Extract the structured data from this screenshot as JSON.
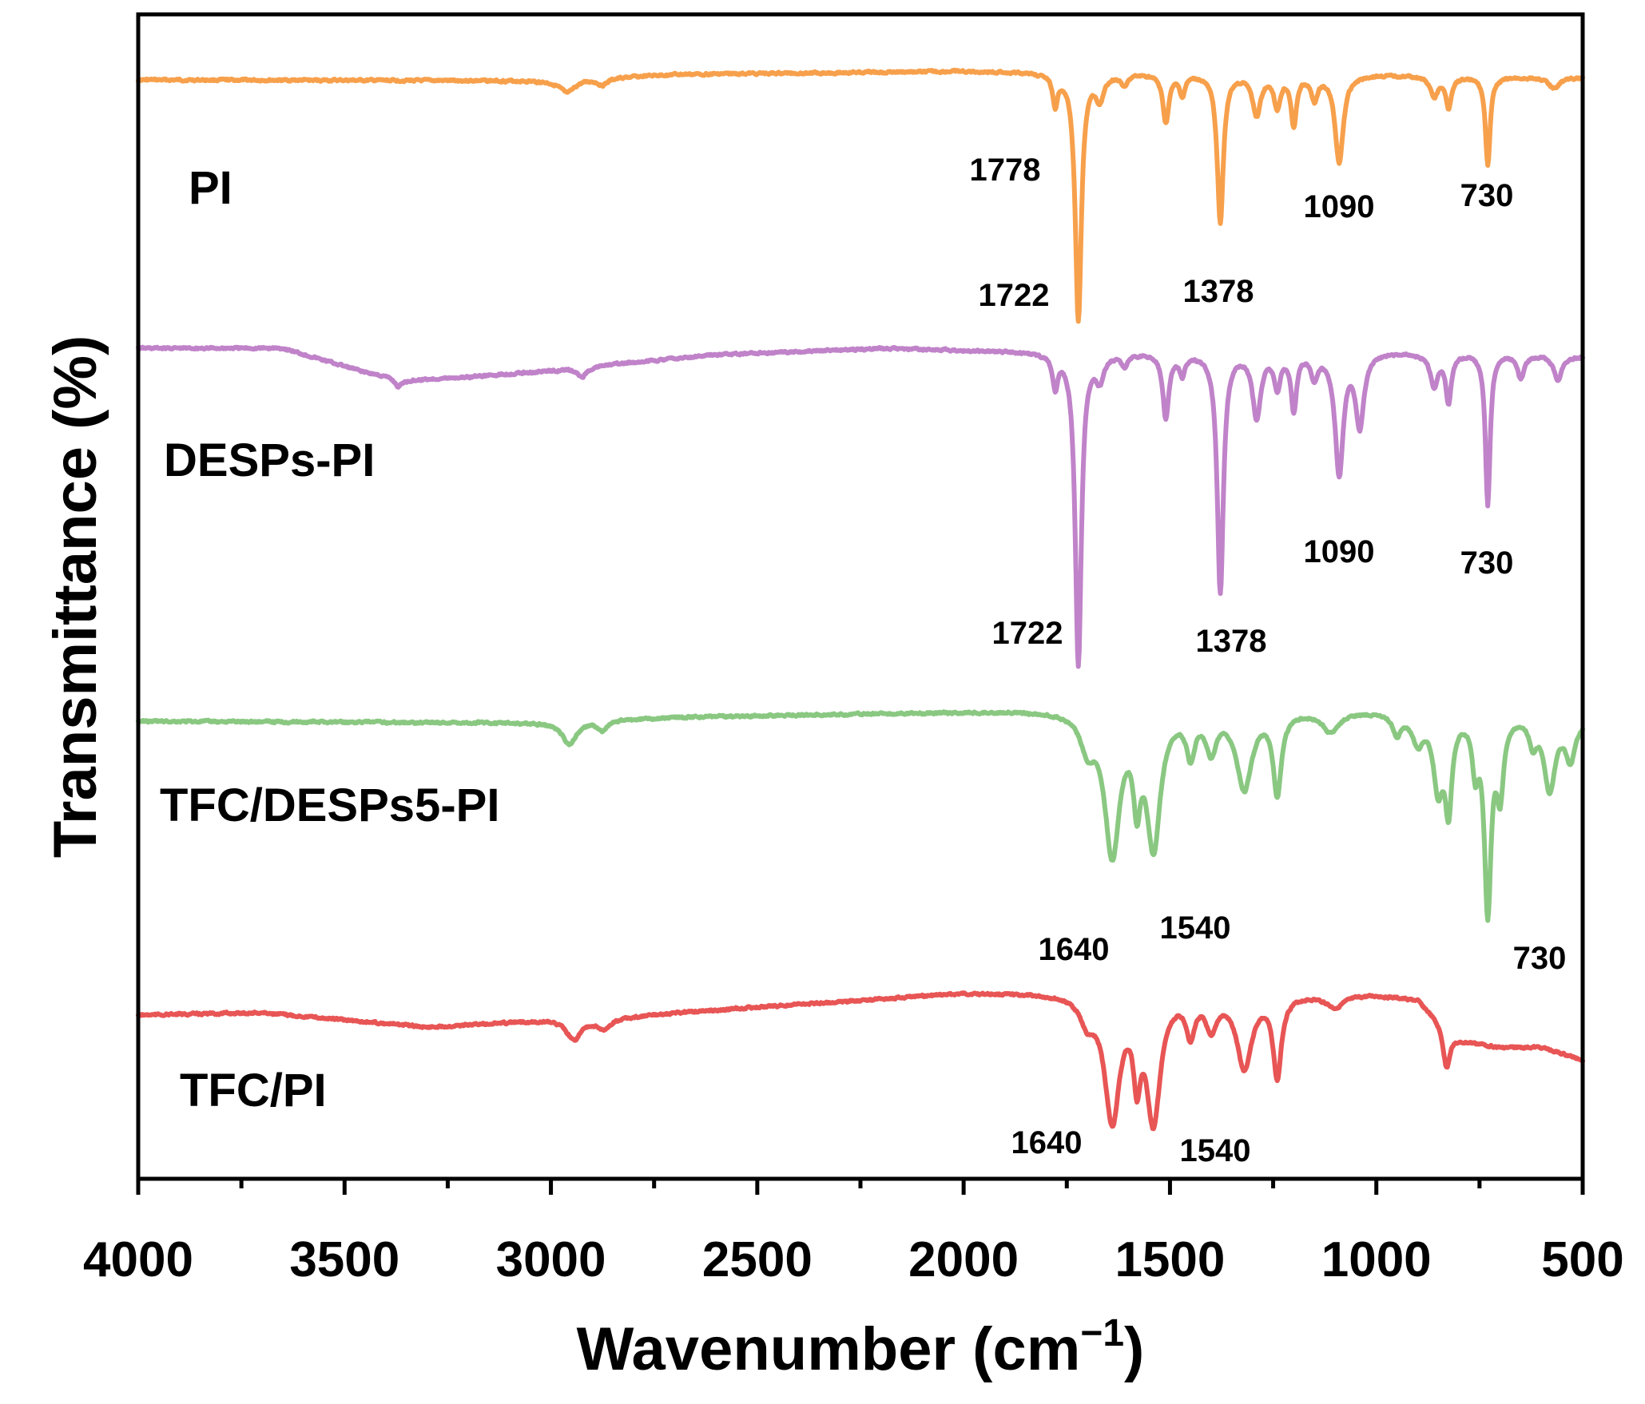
{
  "chart_data": {
    "type": "line",
    "title": "",
    "xlabel": "Wavenumber (cm",
    "xlabel_superscript": "−1",
    "xlabel_close": ")",
    "ylabel": "Transmittance (%)",
    "xlim": [
      4000,
      500
    ],
    "x_ticks": [
      4000,
      3500,
      3000,
      2500,
      2000,
      1500,
      1000,
      500
    ],
    "x_tick_labels": [
      "4000",
      "3500",
      "3000",
      "2500",
      "2000",
      "1500",
      "1000",
      "500"
    ],
    "y_ticks_shown": false,
    "series": [
      {
        "name": "PI",
        "color": "#f7a04c",
        "baseline": 0.0,
        "noise": 2.2,
        "drift": [
          [
            4000,
            0
          ],
          [
            3000,
            -1
          ],
          [
            2850,
            3
          ],
          [
            2700,
            7
          ],
          [
            2000,
            11
          ],
          [
            1790,
            10
          ],
          [
            1000,
            7
          ],
          [
            700,
            4
          ],
          [
            500,
            3
          ]
        ],
        "peaks": [
          {
            "x": 2960,
            "depth": 16,
            "width": 22
          },
          {
            "x": 2875,
            "depth": 8,
            "width": 15
          },
          {
            "x": 1778,
            "depth": 40,
            "width": 7
          },
          {
            "x": 1722,
            "depth": 310,
            "width": 9
          },
          {
            "x": 1670,
            "depth": 30,
            "width": 12
          },
          {
            "x": 1610,
            "depth": 15,
            "width": 9
          },
          {
            "x": 1510,
            "depth": 60,
            "width": 9
          },
          {
            "x": 1470,
            "depth": 25,
            "width": 8
          },
          {
            "x": 1378,
            "depth": 185,
            "width": 9
          },
          {
            "x": 1290,
            "depth": 50,
            "width": 12
          },
          {
            "x": 1240,
            "depth": 40,
            "width": 9
          },
          {
            "x": 1200,
            "depth": 62,
            "width": 8
          },
          {
            "x": 1150,
            "depth": 30,
            "width": 9
          },
          {
            "x": 1090,
            "depth": 110,
            "width": 12
          },
          {
            "x": 860,
            "depth": 25,
            "width": 12
          },
          {
            "x": 825,
            "depth": 38,
            "width": 8
          },
          {
            "x": 730,
            "depth": 110,
            "width": 7
          },
          {
            "x": 570,
            "depth": 14,
            "width": 15
          }
        ]
      },
      {
        "name": "DESPs-PI",
        "color": "#c083c9",
        "baseline": 0.0,
        "noise": 2.2,
        "drift": [
          [
            4000,
            0
          ],
          [
            3650,
            0
          ],
          [
            3450,
            -30
          ],
          [
            3350,
            -40
          ],
          [
            3200,
            -36
          ],
          [
            3000,
            -28
          ],
          [
            2850,
            -20
          ],
          [
            2600,
            -8
          ],
          [
            2200,
            0
          ],
          [
            1900,
            -3
          ],
          [
            1790,
            -5
          ],
          [
            1000,
            -4
          ],
          [
            700,
            -5
          ],
          [
            500,
            -10
          ]
        ],
        "peaks": [
          {
            "x": 3370,
            "depth": 10,
            "width": 10
          },
          {
            "x": 2925,
            "depth": 12,
            "width": 14
          },
          {
            "x": 1778,
            "depth": 40,
            "width": 7
          },
          {
            "x": 1722,
            "depth": 390,
            "width": 9
          },
          {
            "x": 1670,
            "depth": 30,
            "width": 12
          },
          {
            "x": 1610,
            "depth": 15,
            "width": 9
          },
          {
            "x": 1510,
            "depth": 80,
            "width": 9
          },
          {
            "x": 1470,
            "depth": 25,
            "width": 8
          },
          {
            "x": 1378,
            "depth": 300,
            "width": 9
          },
          {
            "x": 1290,
            "depth": 80,
            "width": 12
          },
          {
            "x": 1240,
            "depth": 40,
            "width": 9
          },
          {
            "x": 1200,
            "depth": 70,
            "width": 8
          },
          {
            "x": 1150,
            "depth": 30,
            "width": 9
          },
          {
            "x": 1090,
            "depth": 150,
            "width": 12
          },
          {
            "x": 1040,
            "depth": 90,
            "width": 12
          },
          {
            "x": 860,
            "depth": 40,
            "width": 12
          },
          {
            "x": 825,
            "depth": 60,
            "width": 8
          },
          {
            "x": 730,
            "depth": 190,
            "width": 7
          },
          {
            "x": 650,
            "depth": 30,
            "width": 10
          },
          {
            "x": 560,
            "depth": 30,
            "width": 12
          }
        ]
      },
      {
        "name": "TFC/DESPs5-PI",
        "color": "#8ac882",
        "baseline": 0.0,
        "noise": 2.2,
        "drift": [
          [
            4000,
            0
          ],
          [
            3000,
            -2
          ],
          [
            2800,
            3
          ],
          [
            2700,
            5
          ],
          [
            2000,
            12
          ],
          [
            1800,
            14
          ],
          [
            1000,
            14
          ],
          [
            700,
            10
          ],
          [
            500,
            4
          ]
        ],
        "peaks": [
          {
            "x": 2955,
            "depth": 28,
            "width": 20
          },
          {
            "x": 2875,
            "depth": 12,
            "width": 14
          },
          {
            "x": 1700,
            "depth": 40,
            "width": 20
          },
          {
            "x": 1640,
            "depth": 175,
            "width": 22
          },
          {
            "x": 1580,
            "depth": 90,
            "width": 10
          },
          {
            "x": 1540,
            "depth": 165,
            "width": 20
          },
          {
            "x": 1450,
            "depth": 50,
            "width": 12
          },
          {
            "x": 1400,
            "depth": 45,
            "width": 15
          },
          {
            "x": 1320,
            "depth": 95,
            "width": 22
          },
          {
            "x": 1240,
            "depth": 100,
            "width": 12
          },
          {
            "x": 1110,
            "depth": 25,
            "width": 25
          },
          {
            "x": 950,
            "depth": 25,
            "width": 12
          },
          {
            "x": 900,
            "depth": 35,
            "width": 16
          },
          {
            "x": 850,
            "depth": 90,
            "width": 14
          },
          {
            "x": 825,
            "depth": 110,
            "width": 10
          },
          {
            "x": 760,
            "depth": 60,
            "width": 9
          },
          {
            "x": 730,
            "depth": 240,
            "width": 10
          },
          {
            "x": 700,
            "depth": 90,
            "width": 10
          },
          {
            "x": 620,
            "depth": 30,
            "width": 10
          },
          {
            "x": 580,
            "depth": 90,
            "width": 16
          },
          {
            "x": 530,
            "depth": 50,
            "width": 14
          }
        ]
      },
      {
        "name": "TFC/PI",
        "color": "#e85555",
        "baseline": 0.0,
        "noise": 2.2,
        "drift": [
          [
            4000,
            0
          ],
          [
            3700,
            3
          ],
          [
            3300,
            -15
          ],
          [
            3000,
            -6
          ],
          [
            2900,
            -8
          ],
          [
            2800,
            -2
          ],
          [
            2700,
            3
          ],
          [
            2000,
            28
          ],
          [
            1800,
            28
          ],
          [
            1000,
            26
          ],
          [
            900,
            20
          ],
          [
            800,
            -30
          ],
          [
            700,
            -40
          ],
          [
            600,
            -40
          ],
          [
            500,
            -56
          ]
        ],
        "peaks": [
          {
            "x": 2945,
            "depth": 24,
            "width": 20
          },
          {
            "x": 2870,
            "depth": 12,
            "width": 14
          },
          {
            "x": 1700,
            "depth": 30,
            "width": 20
          },
          {
            "x": 1640,
            "depth": 155,
            "width": 22
          },
          {
            "x": 1580,
            "depth": 85,
            "width": 10
          },
          {
            "x": 1540,
            "depth": 155,
            "width": 20
          },
          {
            "x": 1450,
            "depth": 45,
            "width": 12
          },
          {
            "x": 1400,
            "depth": 40,
            "width": 15
          },
          {
            "x": 1320,
            "depth": 90,
            "width": 22
          },
          {
            "x": 1240,
            "depth": 100,
            "width": 12
          },
          {
            "x": 1100,
            "depth": 15,
            "width": 25
          },
          {
            "x": 830,
            "depth": 50,
            "width": 10
          }
        ]
      }
    ],
    "annotations": [
      {
        "series": "PI",
        "text": "1778"
      },
      {
        "series": "PI",
        "text": "1722"
      },
      {
        "series": "PI",
        "text": "1378"
      },
      {
        "series": "PI",
        "text": "1090"
      },
      {
        "series": "PI",
        "text": "730"
      },
      {
        "series": "DESPs-PI",
        "text": "1722"
      },
      {
        "series": "DESPs-PI",
        "text": "1378"
      },
      {
        "series": "DESPs-PI",
        "text": "1090"
      },
      {
        "series": "DESPs-PI",
        "text": "730"
      },
      {
        "series": "TFC/DESPs5-PI",
        "text": "1640"
      },
      {
        "series": "TFC/DESPs5-PI",
        "text": "1540"
      },
      {
        "series": "TFC/DESPs5-PI",
        "text": "730"
      },
      {
        "series": "TFC/PI",
        "text": "1640"
      },
      {
        "series": "TFC/PI",
        "text": "1540"
      }
    ]
  }
}
